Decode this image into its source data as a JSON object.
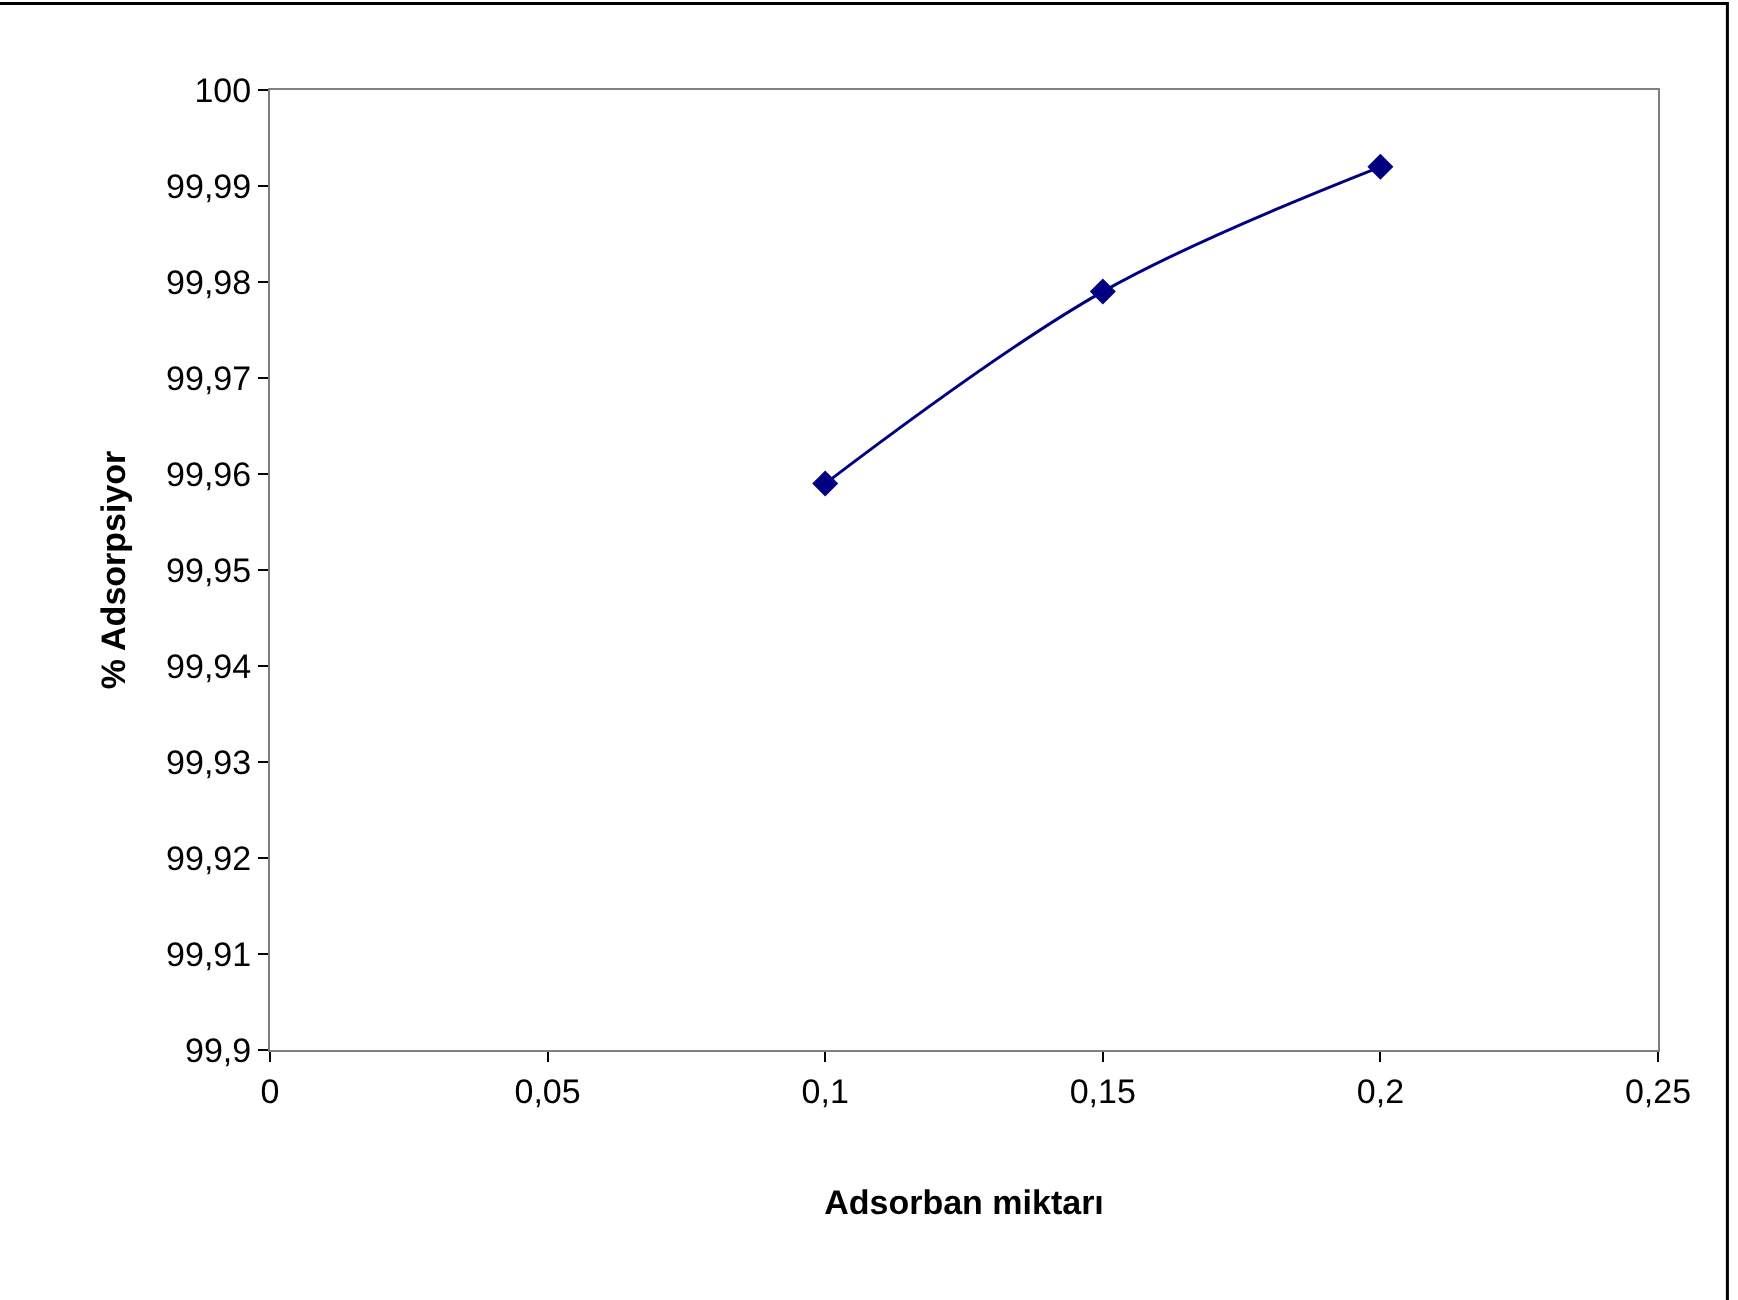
{
  "chart_data": {
    "type": "line",
    "xlabel": "Adsorban miktarı",
    "ylabel": "% Adsorpsiyor",
    "x": [
      0.1,
      0.15,
      0.2
    ],
    "series": [
      {
        "color": "#000080",
        "values": [
          99.959,
          99.979,
          99.992
        ]
      }
    ],
    "xlim": [
      0,
      0.25
    ],
    "xticks": [
      0,
      {
        "value": 0.05,
        "label": "0,05"
      },
      {
        "value": 0.1,
        "label": "0,1"
      },
      {
        "value": 0.15,
        "label": "0,15"
      },
      {
        "value": 0.2,
        "label": "0,2"
      },
      {
        "value": 0.25,
        "label": "0,25"
      }
    ],
    "ylim": [
      99.9,
      100
    ],
    "yticks": [
      {
        "value": 99.9,
        "label": "99,9"
      },
      {
        "value": 99.91,
        "label": "99,91"
      },
      {
        "value": 99.92,
        "label": "99,92"
      },
      {
        "value": 99.93,
        "label": "99,93"
      },
      {
        "value": 99.94,
        "label": "99,94"
      },
      {
        "value": 99.95,
        "label": "99,95"
      },
      {
        "value": 99.96,
        "label": "99,96"
      },
      {
        "value": 99.97,
        "label": "99,97"
      },
      {
        "value": 99.98,
        "label": "99,98"
      },
      {
        "value": 99.99,
        "label": "99,99"
      },
      100
    ],
    "marker": "diamond",
    "line_style": "solid"
  }
}
